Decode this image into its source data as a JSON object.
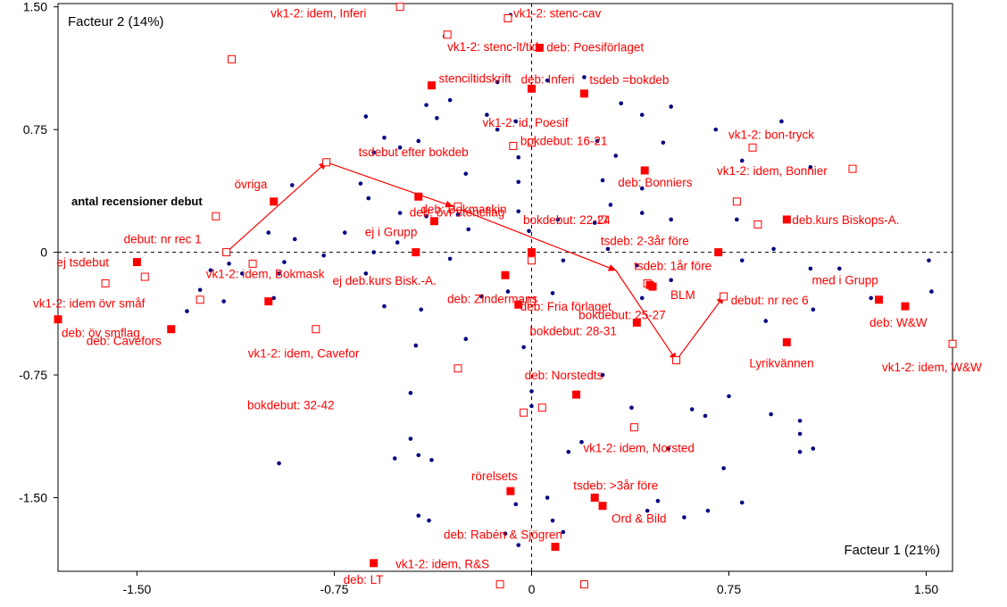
{
  "chart_data": {
    "type": "scatter",
    "title": "",
    "x_axis_label": "Facteur 1 (21%)",
    "y_axis_label": "Facteur 2 (14%)",
    "xlim": [
      -1.8,
      1.6
    ],
    "ylim": [
      -1.95,
      1.52
    ],
    "x_ticks": [
      -1.5,
      -0.75,
      0,
      0.75,
      1.5
    ],
    "x_tick_labels": [
      "-1.50",
      "-0.75",
      "0",
      "0.75",
      "1.50"
    ],
    "y_ticks": [
      1.5,
      0.75,
      0,
      -0.75,
      -1.5
    ],
    "y_tick_labels": [
      "1.50",
      "0.75",
      "0",
      "-0.75",
      "-1.50"
    ],
    "zero_lines": true,
    "colors": {
      "active": "#ff0000",
      "supplementary": "#ff0000",
      "individuals": "#000080",
      "text": "#ff0000",
      "axis": "#000000"
    },
    "supplementary_title": "antal recensioner debut",
    "active_points": [
      {
        "label": "deb: Poesiförlaget",
        "x": 0.03,
        "y": 1.25
      },
      {
        "label": "stenciltidskrift",
        "x": -0.38,
        "y": 1.02
      },
      {
        "label": "tsdeb =bokdeb",
        "x": 0.2,
        "y": 0.97
      },
      {
        "label": "deb: Inferi",
        "x": 0.0,
        "y": 1.0
      },
      {
        "label": "övriga",
        "x": -0.98,
        "y": 0.31
      },
      {
        "label": "deb: övr stencflag",
        "x": -0.43,
        "y": 0.34
      },
      {
        "label": "deb: Bokmaskin",
        "x": -0.37,
        "y": 0.19
      },
      {
        "label": "ej i Grupp",
        "x": -0.44,
        "y": 0.0
      },
      {
        "label": "deb: Bonniers",
        "x": 0.43,
        "y": 0.5
      },
      {
        "label": "deb.kurs Biskops-A.",
        "x": 0.97,
        "y": 0.2
      },
      {
        "label": "ej tsdebut",
        "x": -1.5,
        "y": -0.06
      },
      {
        "label": "vk1-2: idem, Bokmask",
        "x": -1.0,
        "y": -0.3
      },
      {
        "label": "deb: Zindermans",
        "x": -0.1,
        "y": -0.14
      },
      {
        "label": "bokdebut: 25-27",
        "x": 0.45,
        "y": -0.2
      },
      {
        "label": "BLM",
        "x": 0.46,
        "y": -0.21
      },
      {
        "label": "deb: Cavefors",
        "x": -1.37,
        "y": -0.47
      },
      {
        "label": "deb: öv smflag",
        "x": -1.8,
        "y": -0.41
      },
      {
        "label": "deb: Fria förlaget",
        "x": -0.05,
        "y": -0.32
      },
      {
        "label": "bokdebut: 28-31",
        "x": 0.4,
        "y": -0.43
      },
      {
        "label": "med i Grupp",
        "x": 1.32,
        "y": -0.29
      },
      {
        "label": "deb: W&W",
        "x": 1.42,
        "y": -0.33
      },
      {
        "label": "Lyrikvännen",
        "x": 0.97,
        "y": -0.55
      },
      {
        "label": "deb: Norstedts",
        "x": 0.17,
        "y": -0.87
      },
      {
        "label": "rörelsets",
        "x": -0.08,
        "y": -1.46
      },
      {
        "label": "tsdeb: >3år före",
        "x": 0.24,
        "y": -1.5
      },
      {
        "label": "Ord & Bild",
        "x": 0.27,
        "y": -1.55
      },
      {
        "label": "deb: Rabén & Sjögren",
        "x": 0.09,
        "y": -1.8
      },
      {
        "label": "deb: LT",
        "x": -0.6,
        "y": -1.9
      },
      {
        "label": "tsdeb: 2-3år före",
        "x": 0.71,
        "y": 0.0
      },
      {
        "label": "",
        "x": 0.0,
        "y": 0.0
      }
    ],
    "supplementary_points": [
      {
        "label": "vk1-2: idem, Inferi",
        "x": -0.5,
        "y": 1.5
      },
      {
        "label": "vk1-2: stenc-cav",
        "x": -0.09,
        "y": 1.43
      },
      {
        "label": "vk1-2: stenc-lt/tid",
        "x": -0.32,
        "y": 1.33
      },
      {
        "label": "",
        "x": -1.14,
        "y": 1.18
      },
      {
        "label": "vk1-2: id, Poesif",
        "x": 0.0,
        "y": 0.67
      },
      {
        "label": "bokdebut: 16-21",
        "x": -0.07,
        "y": 0.65
      },
      {
        "label": "vk1-2: bon-tryck",
        "x": 0.84,
        "y": 0.64
      },
      {
        "label": "vk1-2: idem, Bonnier",
        "x": 1.22,
        "y": 0.51
      },
      {
        "label": "tsdebut efter bokdeb",
        "x": -0.78,
        "y": 0.55
      },
      {
        "label": "bokdebut: 22-24",
        "x": 0.27,
        "y": 0.2
      },
      {
        "label": "",
        "x": 0.78,
        "y": 0.31
      },
      {
        "label": "",
        "x": 0.86,
        "y": 0.17
      },
      {
        "label": "",
        "x": -1.2,
        "y": 0.22
      },
      {
        "label": "",
        "x": -0.28,
        "y": 0.28
      },
      {
        "label": "debut: nr rec 1",
        "x": -1.16,
        "y": 0.0
      },
      {
        "label": "",
        "x": -1.06,
        "y": -0.07
      },
      {
        "label": "",
        "x": -1.47,
        "y": -0.15
      },
      {
        "label": "vk1-2: idem övr småf",
        "x": -1.62,
        "y": -0.19
      },
      {
        "label": "",
        "x": -1.26,
        "y": -0.29
      },
      {
        "label": "vk1-2: idem, Cavefor",
        "x": -0.82,
        "y": -0.47
      },
      {
        "label": "ej deb.kurs Bisk.-A.",
        "x": 0.0,
        "y": -0.05
      },
      {
        "label": "",
        "x": 0.0,
        "y": -0.3
      },
      {
        "label": "debut: nr rec 6",
        "x": 0.73,
        "y": -0.27
      },
      {
        "label": "tsdeb: 1år före",
        "x": 0.44,
        "y": -0.19
      },
      {
        "label": "",
        "x": 0.55,
        "y": -0.66
      },
      {
        "label": "vk1-2: idem, W&W",
        "x": 1.6,
        "y": -0.56
      },
      {
        "label": "bokdebut: 32-42",
        "x": -0.28,
        "y": -0.71
      },
      {
        "label": "",
        "x": 0.04,
        "y": -0.95
      },
      {
        "label": "",
        "x": -0.03,
        "y": -0.98
      },
      {
        "label": "vk1-2: idem, Norsted",
        "x": 0.39,
        "y": -1.07
      },
      {
        "label": "vk1-2: idem, R&S",
        "x": -0.12,
        "y": -2.03
      },
      {
        "label": "",
        "x": 0.2,
        "y": -2.03
      }
    ],
    "supplementary_path": [
      {
        "x": -1.16,
        "y": 0.0
      },
      {
        "x": -0.78,
        "y": 0.55
      },
      {
        "x": 0.0,
        "y": 0.0
      },
      {
        "x": 0.55,
        "y": -0.66
      },
      {
        "x": 0.73,
        "y": -0.27
      }
    ],
    "path_arrow_points": [
      {
        "x": -0.78,
        "y": 0.55
      },
      {
        "x": -0.3,
        "y": 0.28
      },
      {
        "x": 0.32,
        "y": -0.11
      },
      {
        "x": 0.55,
        "y": -0.66
      },
      {
        "x": 0.73,
        "y": -0.27
      }
    ],
    "individuals": [
      [
        -0.33,
        1.32
      ],
      [
        -0.08,
        1.45
      ],
      [
        0.06,
        1.05
      ],
      [
        -0.13,
        1.04
      ],
      [
        -0.31,
        0.93
      ],
      [
        -0.4,
        0.9
      ],
      [
        0.2,
        1.07
      ],
      [
        -0.36,
        0.82
      ],
      [
        -0.17,
        0.84
      ],
      [
        -0.06,
        0.8
      ],
      [
        -0.63,
        0.83
      ],
      [
        -0.13,
        0.75
      ],
      [
        -0.43,
        0.68
      ],
      [
        -0.56,
        0.7
      ],
      [
        -0.5,
        0.64
      ],
      [
        -0.6,
        0.61
      ],
      [
        0.34,
        0.91
      ],
      [
        0.42,
        0.84
      ],
      [
        0.53,
        0.89
      ],
      [
        -0.05,
        0.58
      ],
      [
        0.25,
        0.68
      ],
      [
        0.32,
        0.59
      ],
      [
        0.5,
        0.67
      ],
      [
        0.7,
        0.75
      ],
      [
        0.8,
        0.56
      ],
      [
        0.95,
        0.8
      ],
      [
        1.06,
        0.52
      ],
      [
        -0.05,
        0.43
      ],
      [
        -0.25,
        0.48
      ],
      [
        0.27,
        0.44
      ],
      [
        0.3,
        0.29
      ],
      [
        0.42,
        0.39
      ],
      [
        0.42,
        0.24
      ],
      [
        -0.65,
        0.42
      ],
      [
        -0.91,
        0.41
      ],
      [
        -0.62,
        0.33
      ],
      [
        -0.5,
        0.24
      ],
      [
        -0.4,
        0.22
      ],
      [
        -0.28,
        0.23
      ],
      [
        -0.05,
        0.25
      ],
      [
        -0.24,
        0.14
      ],
      [
        -0.01,
        0.13
      ],
      [
        0.24,
        0.18
      ],
      [
        0.53,
        0.2
      ],
      [
        0.78,
        0.2
      ],
      [
        0.1,
        0.2
      ],
      [
        0.29,
        0.02
      ],
      [
        -0.9,
        0.08
      ],
      [
        -1.0,
        0.12
      ],
      [
        -0.51,
        0.06
      ],
      [
        -0.71,
        0.12
      ],
      [
        -0.63,
        -0.13
      ],
      [
        -0.94,
        -0.06
      ],
      [
        -0.96,
        -0.13
      ],
      [
        -1.1,
        -0.13
      ],
      [
        -1.15,
        -0.07
      ],
      [
        -1.22,
        -0.11
      ],
      [
        -0.79,
        -0.02
      ],
      [
        -0.6,
        0.0
      ],
      [
        -0.31,
        -0.04
      ],
      [
        0.12,
        -0.05
      ],
      [
        0.4,
        -0.08
      ],
      [
        0.53,
        -0.17
      ],
      [
        0.8,
        -0.05
      ],
      [
        0.92,
        0.02
      ],
      [
        1.06,
        -0.1
      ],
      [
        1.17,
        -0.1
      ],
      [
        1.29,
        -0.28
      ],
      [
        1.51,
        -0.05
      ],
      [
        1.52,
        -0.24
      ],
      [
        -1.31,
        -0.36
      ],
      [
        -1.17,
        -0.3
      ],
      [
        -1.26,
        -0.23
      ],
      [
        -0.98,
        -0.28
      ],
      [
        -0.56,
        -0.33
      ],
      [
        -0.42,
        -0.35
      ],
      [
        -0.19,
        -0.27
      ],
      [
        -0.09,
        -0.24
      ],
      [
        -0.44,
        -0.57
      ],
      [
        -0.25,
        -0.53
      ],
      [
        -0.46,
        -0.86
      ],
      [
        0.08,
        -0.25
      ],
      [
        0.42,
        -0.28
      ],
      [
        0.89,
        -0.42
      ],
      [
        1.07,
        -0.35
      ],
      [
        -0.03,
        -0.58
      ],
      [
        0.27,
        -0.75
      ],
      [
        0.0,
        -0.85
      ],
      [
        0.0,
        -0.94
      ],
      [
        0.38,
        -0.95
      ],
      [
        0.61,
        -0.96
      ],
      [
        0.75,
        -0.88
      ],
      [
        0.91,
        -0.99
      ],
      [
        -0.46,
        -1.14
      ],
      [
        -0.43,
        -1.24
      ],
      [
        -0.38,
        -1.27
      ],
      [
        -0.52,
        -1.26
      ],
      [
        0.19,
        -1.16
      ],
      [
        0.14,
        -1.22
      ],
      [
        0.52,
        -1.2
      ],
      [
        0.66,
        -1.0
      ],
      [
        1.02,
        -1.03
      ],
      [
        1.02,
        -1.11
      ],
      [
        1.02,
        -1.22
      ],
      [
        0.73,
        -1.32
      ],
      [
        -0.96,
        -1.29
      ],
      [
        -0.06,
        -1.54
      ],
      [
        -0.05,
        -1.79
      ],
      [
        -0.43,
        -1.61
      ],
      [
        0.08,
        -1.64
      ],
      [
        0.44,
        -1.58
      ],
      [
        0.48,
        -1.52
      ],
      [
        0.58,
        -1.62
      ],
      [
        0.67,
        -1.58
      ],
      [
        0.8,
        -1.53
      ],
      [
        -0.1,
        -1.72
      ],
      [
        0.12,
        -1.71
      ],
      [
        -0.39,
        -1.64
      ],
      [
        0.06,
        -1.5
      ],
      [
        1.07,
        -1.2
      ]
    ]
  }
}
